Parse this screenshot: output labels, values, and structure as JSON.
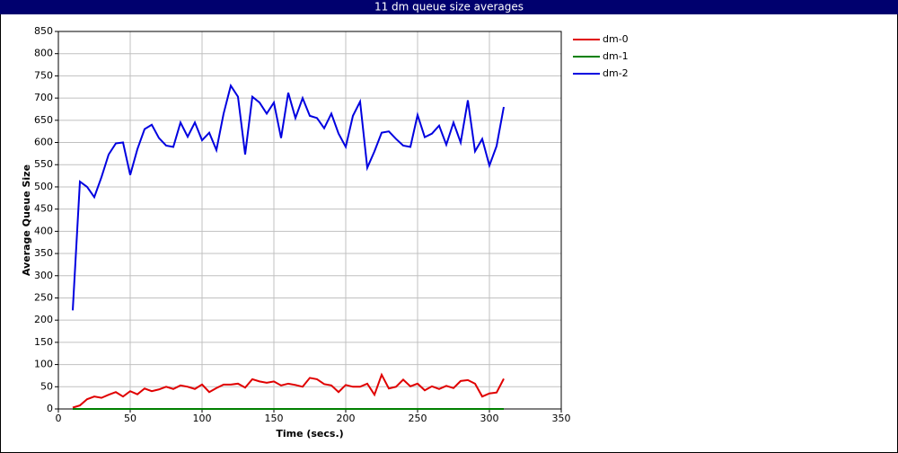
{
  "chart_data": {
    "type": "line",
    "title": "11 dm queue size averages",
    "xlabel": "Time (secs.)",
    "ylabel": "Average Queue Size",
    "x": [
      10,
      15,
      20,
      25,
      30,
      35,
      40,
      45,
      50,
      55,
      60,
      65,
      70,
      75,
      80,
      85,
      90,
      95,
      100,
      105,
      110,
      115,
      120,
      125,
      130,
      135,
      140,
      145,
      150,
      155,
      160,
      165,
      170,
      175,
      180,
      185,
      190,
      195,
      200,
      205,
      210,
      215,
      220,
      225,
      230,
      235,
      240,
      245,
      250,
      255,
      260,
      265,
      270,
      275,
      280,
      285,
      290,
      295,
      300,
      305,
      310
    ],
    "series": [
      {
        "name": "dm-0",
        "color": "#e00000",
        "values": [
          3,
          8,
          22,
          28,
          25,
          32,
          38,
          28,
          40,
          33,
          46,
          40,
          44,
          50,
          45,
          53,
          50,
          45,
          55,
          38,
          47,
          55,
          55,
          57,
          48,
          67,
          62,
          59,
          62,
          53,
          57,
          54,
          50,
          70,
          67,
          56,
          53,
          38,
          54,
          50,
          50,
          57,
          32,
          77,
          46,
          50,
          66,
          51,
          57,
          42,
          51,
          45,
          52,
          47,
          63,
          65,
          57,
          28,
          35,
          37,
          68
        ]
      },
      {
        "name": "dm-1",
        "color": "#008000",
        "values": [
          0,
          0,
          0,
          0,
          0,
          0,
          0,
          0,
          0,
          0,
          0,
          0,
          0,
          0,
          0,
          0,
          0,
          0,
          0,
          0,
          0,
          0,
          0,
          0,
          0,
          0,
          0,
          0,
          0,
          0,
          0,
          0,
          0,
          0,
          0,
          0,
          0,
          0,
          0,
          0,
          0,
          0,
          0,
          0,
          0,
          0,
          0,
          0,
          0,
          0,
          0,
          0,
          0,
          0,
          0,
          0,
          0,
          0,
          0,
          0,
          0
        ]
      },
      {
        "name": "dm-2",
        "color": "#0000e0",
        "values": [
          222,
          512,
          500,
          477,
          522,
          573,
          598,
          600,
          527,
          585,
          630,
          640,
          610,
          593,
          590,
          645,
          613,
          645,
          605,
          622,
          583,
          665,
          728,
          703,
          573,
          703,
          690,
          665,
          690,
          610,
          712,
          655,
          700,
          660,
          655,
          632,
          665,
          620,
          590,
          660,
          692,
          543,
          580,
          622,
          625,
          608,
          593,
          590,
          662,
          612,
          620,
          638,
          595,
          645,
          600,
          695,
          580,
          608,
          548,
          592,
          680
        ]
      }
    ],
    "xlim": [
      0,
      350
    ],
    "xticks": [
      0,
      50,
      100,
      150,
      200,
      250,
      300,
      350
    ],
    "ylim": [
      0,
      850
    ],
    "yticks": [
      0,
      50,
      100,
      150,
      200,
      250,
      300,
      350,
      400,
      450,
      500,
      550,
      600,
      650,
      700,
      750,
      800,
      850
    ],
    "grid": true
  }
}
